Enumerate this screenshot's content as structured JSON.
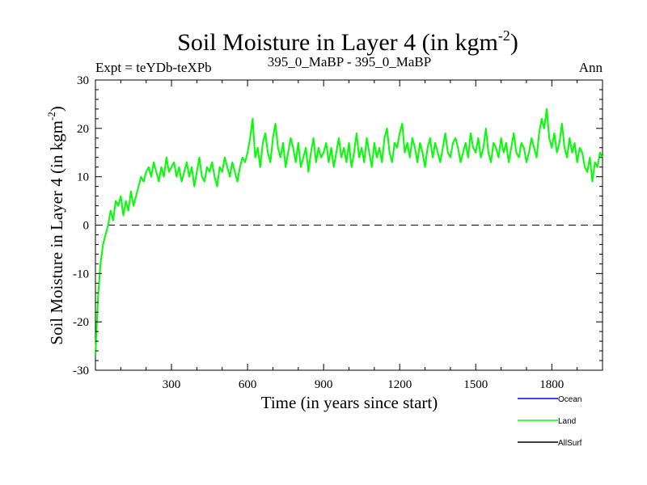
{
  "chart_data": {
    "type": "line",
    "title": "Soil Moisture in Layer 4 (in kgm",
    "title_superscript": "-2",
    "title_suffix": ")",
    "subtitle_left": "Expt = teYDb-teXPb",
    "subtitle_center": "395_0_MaBP - 395_0_MaBP",
    "subtitle_right": "Ann",
    "xlabel": "Time (in years since start)",
    "ylabel": "Soil Moisture in Layer 4 (in kgm",
    "ylabel_superscript": "-2",
    "ylabel_suffix": ")",
    "xlim": [
      0,
      2000
    ],
    "ylim": [
      -30,
      30
    ],
    "xticks": [
      300,
      600,
      900,
      1200,
      1500,
      1800
    ],
    "xtick_labels": [
      "300",
      "600",
      "900",
      "1200",
      "1500",
      "1800"
    ],
    "yticks": [
      -30,
      -20,
      -10,
      0,
      10,
      20,
      30
    ],
    "ytick_labels": [
      "-30",
      "-20",
      "-10",
      "0",
      "10",
      "20",
      "30"
    ],
    "zero_line": 0,
    "legend": [
      {
        "name": "Ocean",
        "color": "#0000ff"
      },
      {
        "name": "Land",
        "color": "#00ff00"
      },
      {
        "name": "AllSurf",
        "color": "#000000"
      }
    ],
    "series": [
      {
        "name": "Land",
        "color": "#00ff00",
        "x": [
          0,
          10,
          20,
          30,
          40,
          50,
          60,
          70,
          80,
          90,
          100,
          110,
          120,
          130,
          140,
          150,
          160,
          170,
          180,
          190,
          200,
          210,
          220,
          230,
          240,
          250,
          260,
          270,
          280,
          290,
          300,
          310,
          320,
          330,
          340,
          350,
          360,
          370,
          380,
          390,
          400,
          410,
          420,
          430,
          440,
          450,
          460,
          470,
          480,
          490,
          500,
          510,
          520,
          530,
          540,
          550,
          560,
          570,
          580,
          590,
          600,
          610,
          620,
          630,
          640,
          650,
          660,
          670,
          680,
          690,
          700,
          710,
          720,
          730,
          740,
          750,
          760,
          770,
          780,
          790,
          800,
          810,
          820,
          830,
          840,
          850,
          860,
          870,
          880,
          890,
          900,
          910,
          920,
          930,
          940,
          950,
          960,
          970,
          980,
          990,
          1000,
          1010,
          1020,
          1030,
          1040,
          1050,
          1060,
          1070,
          1080,
          1090,
          1100,
          1110,
          1120,
          1130,
          1140,
          1150,
          1160,
          1170,
          1180,
          1190,
          1200,
          1210,
          1220,
          1230,
          1240,
          1250,
          1260,
          1270,
          1280,
          1290,
          1300,
          1310,
          1320,
          1330,
          1340,
          1350,
          1360,
          1370,
          1380,
          1390,
          1400,
          1410,
          1420,
          1430,
          1440,
          1450,
          1460,
          1470,
          1480,
          1490,
          1500,
          1510,
          1520,
          1530,
          1540,
          1550,
          1560,
          1570,
          1580,
          1590,
          1600,
          1610,
          1620,
          1630,
          1640,
          1650,
          1660,
          1670,
          1680,
          1690,
          1700,
          1710,
          1720,
          1730,
          1740,
          1750,
          1760,
          1770,
          1780,
          1790,
          1800,
          1810,
          1820,
          1830,
          1840,
          1850,
          1860,
          1870,
          1880,
          1890,
          1900,
          1910,
          1920,
          1930,
          1940,
          1950,
          1960,
          1970,
          1980,
          1990,
          2000
        ],
        "values": [
          -27,
          -15,
          -8,
          -4,
          -2,
          0,
          3,
          1,
          5,
          4,
          6,
          2,
          5,
          3,
          7,
          4,
          6,
          8,
          10,
          9,
          11,
          12,
          10,
          13,
          11,
          9,
          12,
          10,
          14,
          11,
          12,
          13,
          10,
          12,
          9,
          11,
          13,
          10,
          12,
          8,
          11,
          14,
          10,
          9,
          12,
          11,
          13,
          10,
          8,
          12,
          11,
          14,
          12,
          10,
          13,
          11,
          9,
          12,
          14,
          13,
          15,
          18,
          22,
          14,
          16,
          12,
          17,
          19,
          15,
          13,
          18,
          21,
          16,
          14,
          17,
          12,
          15,
          18,
          16,
          13,
          17,
          12,
          14,
          16,
          11,
          15,
          18,
          13,
          16,
          14,
          15,
          17,
          13,
          16,
          12,
          15,
          18,
          14,
          16,
          13,
          17,
          12,
          15,
          19,
          14,
          16,
          13,
          18,
          15,
          12,
          17,
          14,
          16,
          13,
          18,
          20,
          15,
          13,
          17,
          16,
          19,
          21,
          15,
          17,
          14,
          18,
          16,
          13,
          17,
          15,
          12,
          16,
          18,
          14,
          17,
          15,
          13,
          16,
          19,
          15,
          14,
          17,
          18,
          16,
          13,
          15,
          17,
          14,
          19,
          16,
          15,
          18,
          14,
          16,
          20,
          15,
          13,
          17,
          16,
          14,
          18,
          15,
          17,
          13,
          16,
          19,
          15,
          14,
          17,
          16,
          13,
          15,
          18,
          16,
          14,
          19,
          22,
          20,
          24,
          18,
          16,
          19,
          15,
          17,
          21,
          16,
          14,
          18,
          15,
          17,
          13,
          16,
          15,
          12,
          11,
          14,
          9,
          13,
          12,
          15,
          14
        ]
      }
    ]
  }
}
